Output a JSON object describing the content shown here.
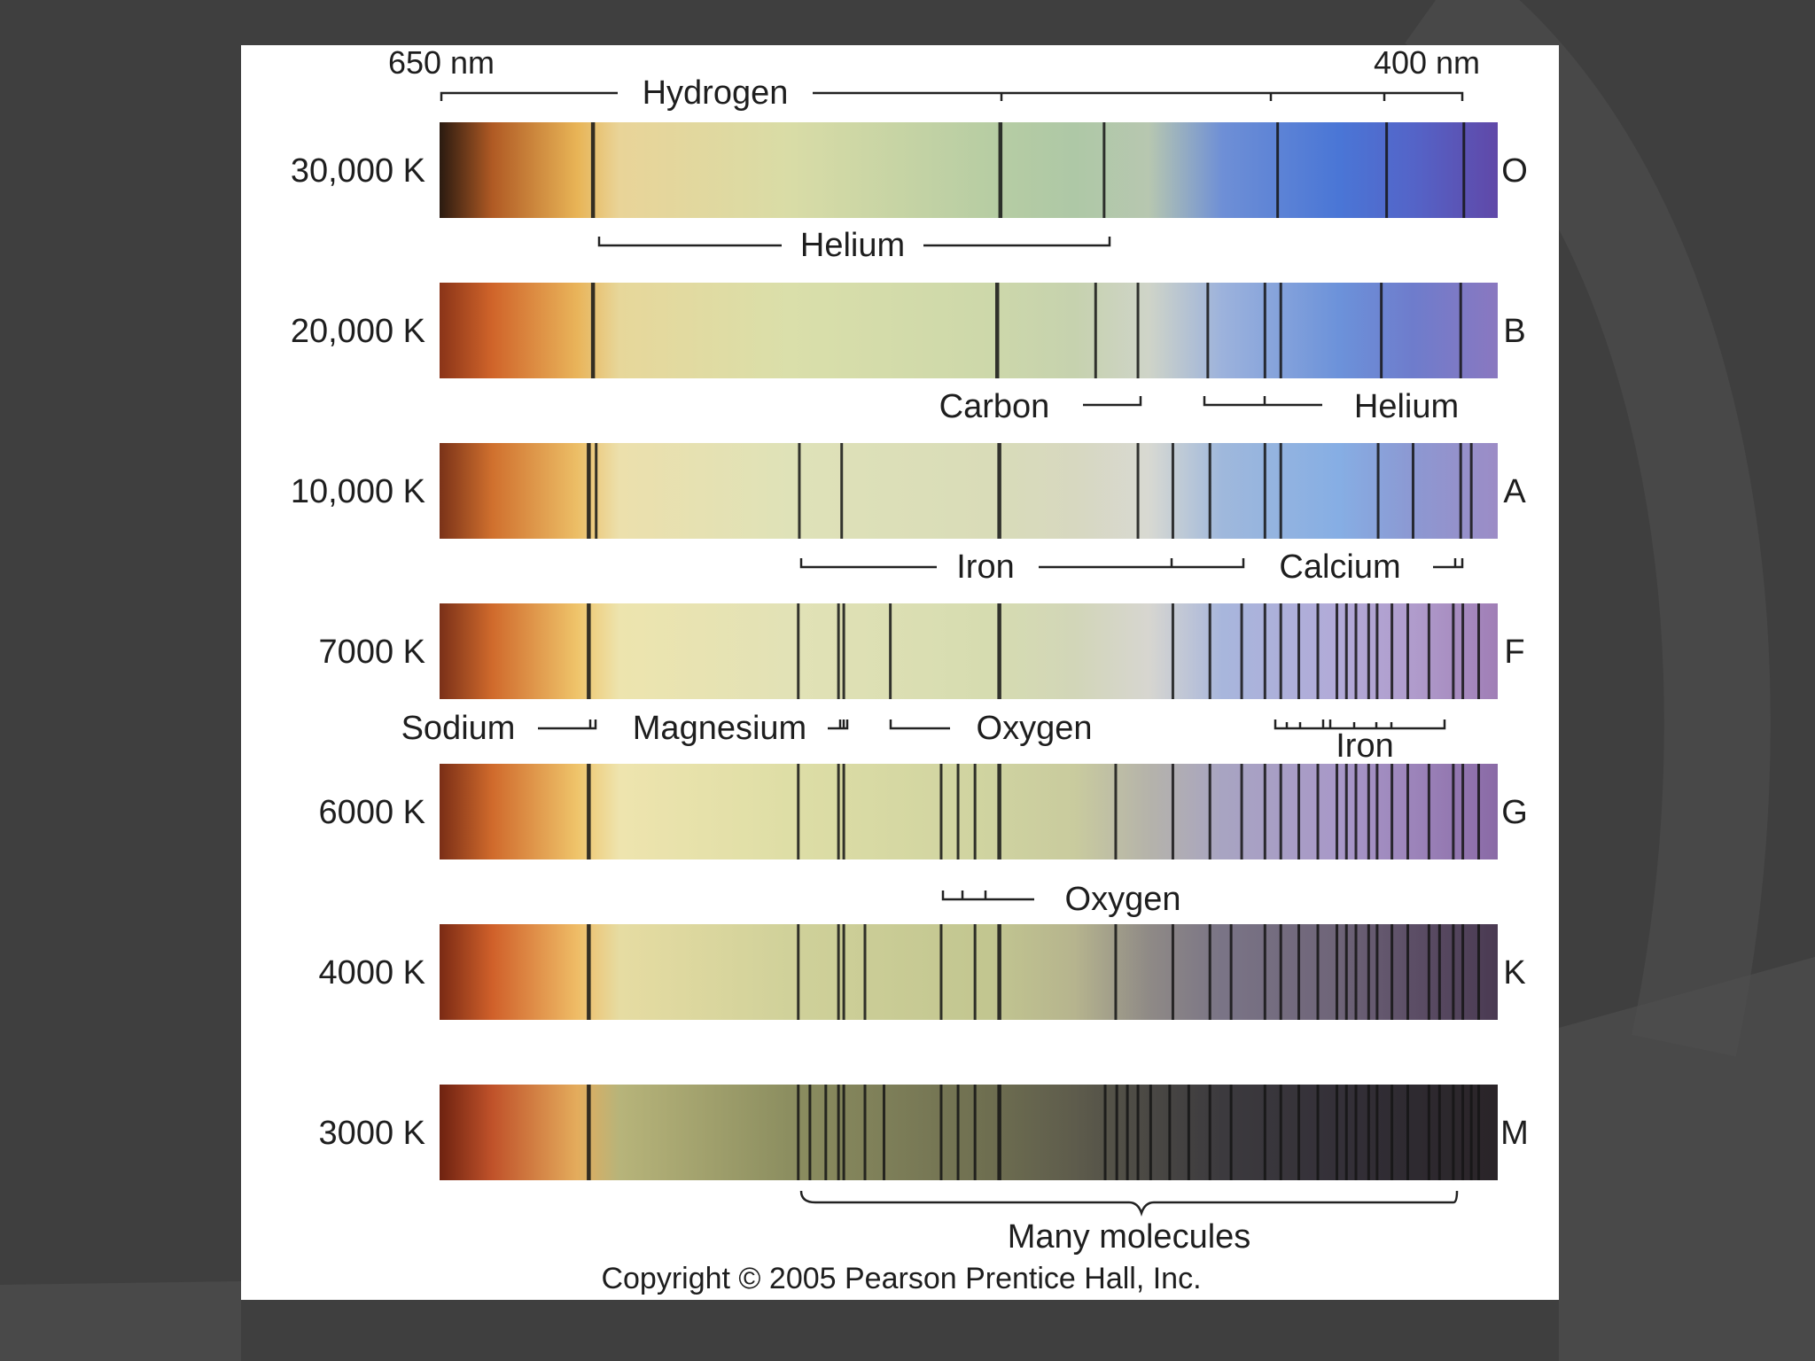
{
  "colors": {
    "background": "#3f3f3f",
    "background_arc": "#4e4e4e",
    "panel": "#ffffff",
    "line": "#151515",
    "stops": {
      "O": [
        "#2a1a10",
        "#b05a24",
        "#e8b456",
        "#e9d498",
        "#d9dca6",
        "#b7cda3",
        "#aec8a6",
        "#b7c7b0",
        "#6e8fd6",
        "#4a76d6",
        "#5464c8",
        "#6048a8"
      ],
      "B": [
        "#8a3418",
        "#d0642a",
        "#e9b45a",
        "#e7d79a",
        "#dadfaa",
        "#cdd8aa",
        "#c6d2ae",
        "#cfd4c8",
        "#9cb2dc",
        "#6c92da",
        "#6e7ccc",
        "#8a78c0"
      ],
      "A": [
        "#7a3218",
        "#d0702e",
        "#ecbe66",
        "#ece0ac",
        "#dfe2b8",
        "#d9dcb8",
        "#d7d8c0",
        "#d8d9d2",
        "#9fb8dc",
        "#86aee4",
        "#8c98d2",
        "#9c8cc6"
      ],
      "F": [
        "#7a3018",
        "#d06a2c",
        "#efc46a",
        "#ede4ae",
        "#e2e2b6",
        "#d6dcb0",
        "#d2d6b8",
        "#d7d6d0",
        "#a8b6dc",
        "#b2aad8",
        "#b09ccc",
        "#a07eb6"
      ],
      "G": [
        "#7a2e16",
        "#d06a2c",
        "#efc46a",
        "#eee4ae",
        "#dedea6",
        "#cfd3a0",
        "#c9cb9e",
        "#b5b3aa",
        "#a8a4c2",
        "#a898c8",
        "#9c84ba",
        "#8a6aa6"
      ],
      "K": [
        "#7a2a14",
        "#d0602a",
        "#efbc66",
        "#e6dca2",
        "#d0d19a",
        "#c2c690",
        "#b6b48e",
        "#8f8a86",
        "#7a7486",
        "#6e6478",
        "#5c4e66",
        "#4a3a52"
      ],
      "M": [
        "#6e2210",
        "#c0522a",
        "#e4ac5c",
        "#b7b47a",
        "#8c8e60",
        "#6e6e50",
        "#5e5c4c",
        "#4a4844",
        "#3c3a3e",
        "#343038",
        "#2e2a30",
        "#2a2428"
      ]
    }
  },
  "axis": {
    "long_label": "650 nm",
    "short_label": "400 nm"
  },
  "spectra": [
    {
      "class": "O",
      "temp": "30,000 K",
      "lines": [
        0.145,
        0.53,
        0.628,
        0.792,
        0.895,
        0.968
      ]
    },
    {
      "class": "B",
      "temp": "20,000 K",
      "lines": [
        0.145,
        0.527,
        0.62,
        0.66,
        0.726,
        0.78,
        0.795,
        0.89,
        0.965
      ]
    },
    {
      "class": "A",
      "temp": "10,000 K",
      "lines": [
        0.141,
        0.148,
        0.34,
        0.38,
        0.529,
        0.66,
        0.693,
        0.728,
        0.78,
        0.795,
        0.887,
        0.92,
        0.965,
        0.975
      ]
    },
    {
      "class": "F",
      "temp": "7000 K",
      "lines": [
        0.141,
        0.339,
        0.377,
        0.382,
        0.426,
        0.529,
        0.693,
        0.728,
        0.758,
        0.78,
        0.795,
        0.812,
        0.83,
        0.848,
        0.857,
        0.866,
        0.878,
        0.886,
        0.9,
        0.915,
        0.935,
        0.958,
        0.967,
        0.982
      ]
    },
    {
      "class": "G",
      "temp": "6000 K",
      "lines": [
        0.141,
        0.339,
        0.377,
        0.382,
        0.474,
        0.49,
        0.506,
        0.529,
        0.639,
        0.693,
        0.728,
        0.758,
        0.78,
        0.795,
        0.812,
        0.83,
        0.848,
        0.857,
        0.866,
        0.878,
        0.886,
        0.9,
        0.915,
        0.935,
        0.958,
        0.967,
        0.982
      ]
    },
    {
      "class": "K",
      "temp": "4000 K",
      "lines": [
        0.141,
        0.339,
        0.377,
        0.382,
        0.402,
        0.474,
        0.506,
        0.529,
        0.639,
        0.693,
        0.728,
        0.748,
        0.78,
        0.795,
        0.812,
        0.83,
        0.848,
        0.857,
        0.866,
        0.878,
        0.886,
        0.9,
        0.915,
        0.935,
        0.945,
        0.958,
        0.967,
        0.982
      ]
    },
    {
      "class": "M",
      "temp": "3000 K",
      "lines": [
        0.141,
        0.339,
        0.35,
        0.365,
        0.377,
        0.382,
        0.402,
        0.42,
        0.474,
        0.49,
        0.506,
        0.529,
        0.629,
        0.64,
        0.65,
        0.66,
        0.672,
        0.69,
        0.708,
        0.728,
        0.748,
        0.78,
        0.795,
        0.812,
        0.83,
        0.848,
        0.857,
        0.866,
        0.878,
        0.886,
        0.9,
        0.915,
        0.935,
        0.945,
        0.958,
        0.967,
        0.975,
        0.982
      ]
    }
  ],
  "labels": {
    "hydrogen": "Hydrogen",
    "helium_o": "Helium",
    "carbon": "Carbon",
    "helium_b": "Helium",
    "iron_a": "Iron",
    "calcium": "Calcium",
    "sodium": "Sodium",
    "magnesium": "Magnesium",
    "oxygen_f": "Oxygen",
    "iron_f": "Iron",
    "oxygen_g": "Oxygen",
    "molecules": "Many molecules"
  },
  "copyright": "Copyright © 2005 Pearson Prentice Hall, Inc."
}
